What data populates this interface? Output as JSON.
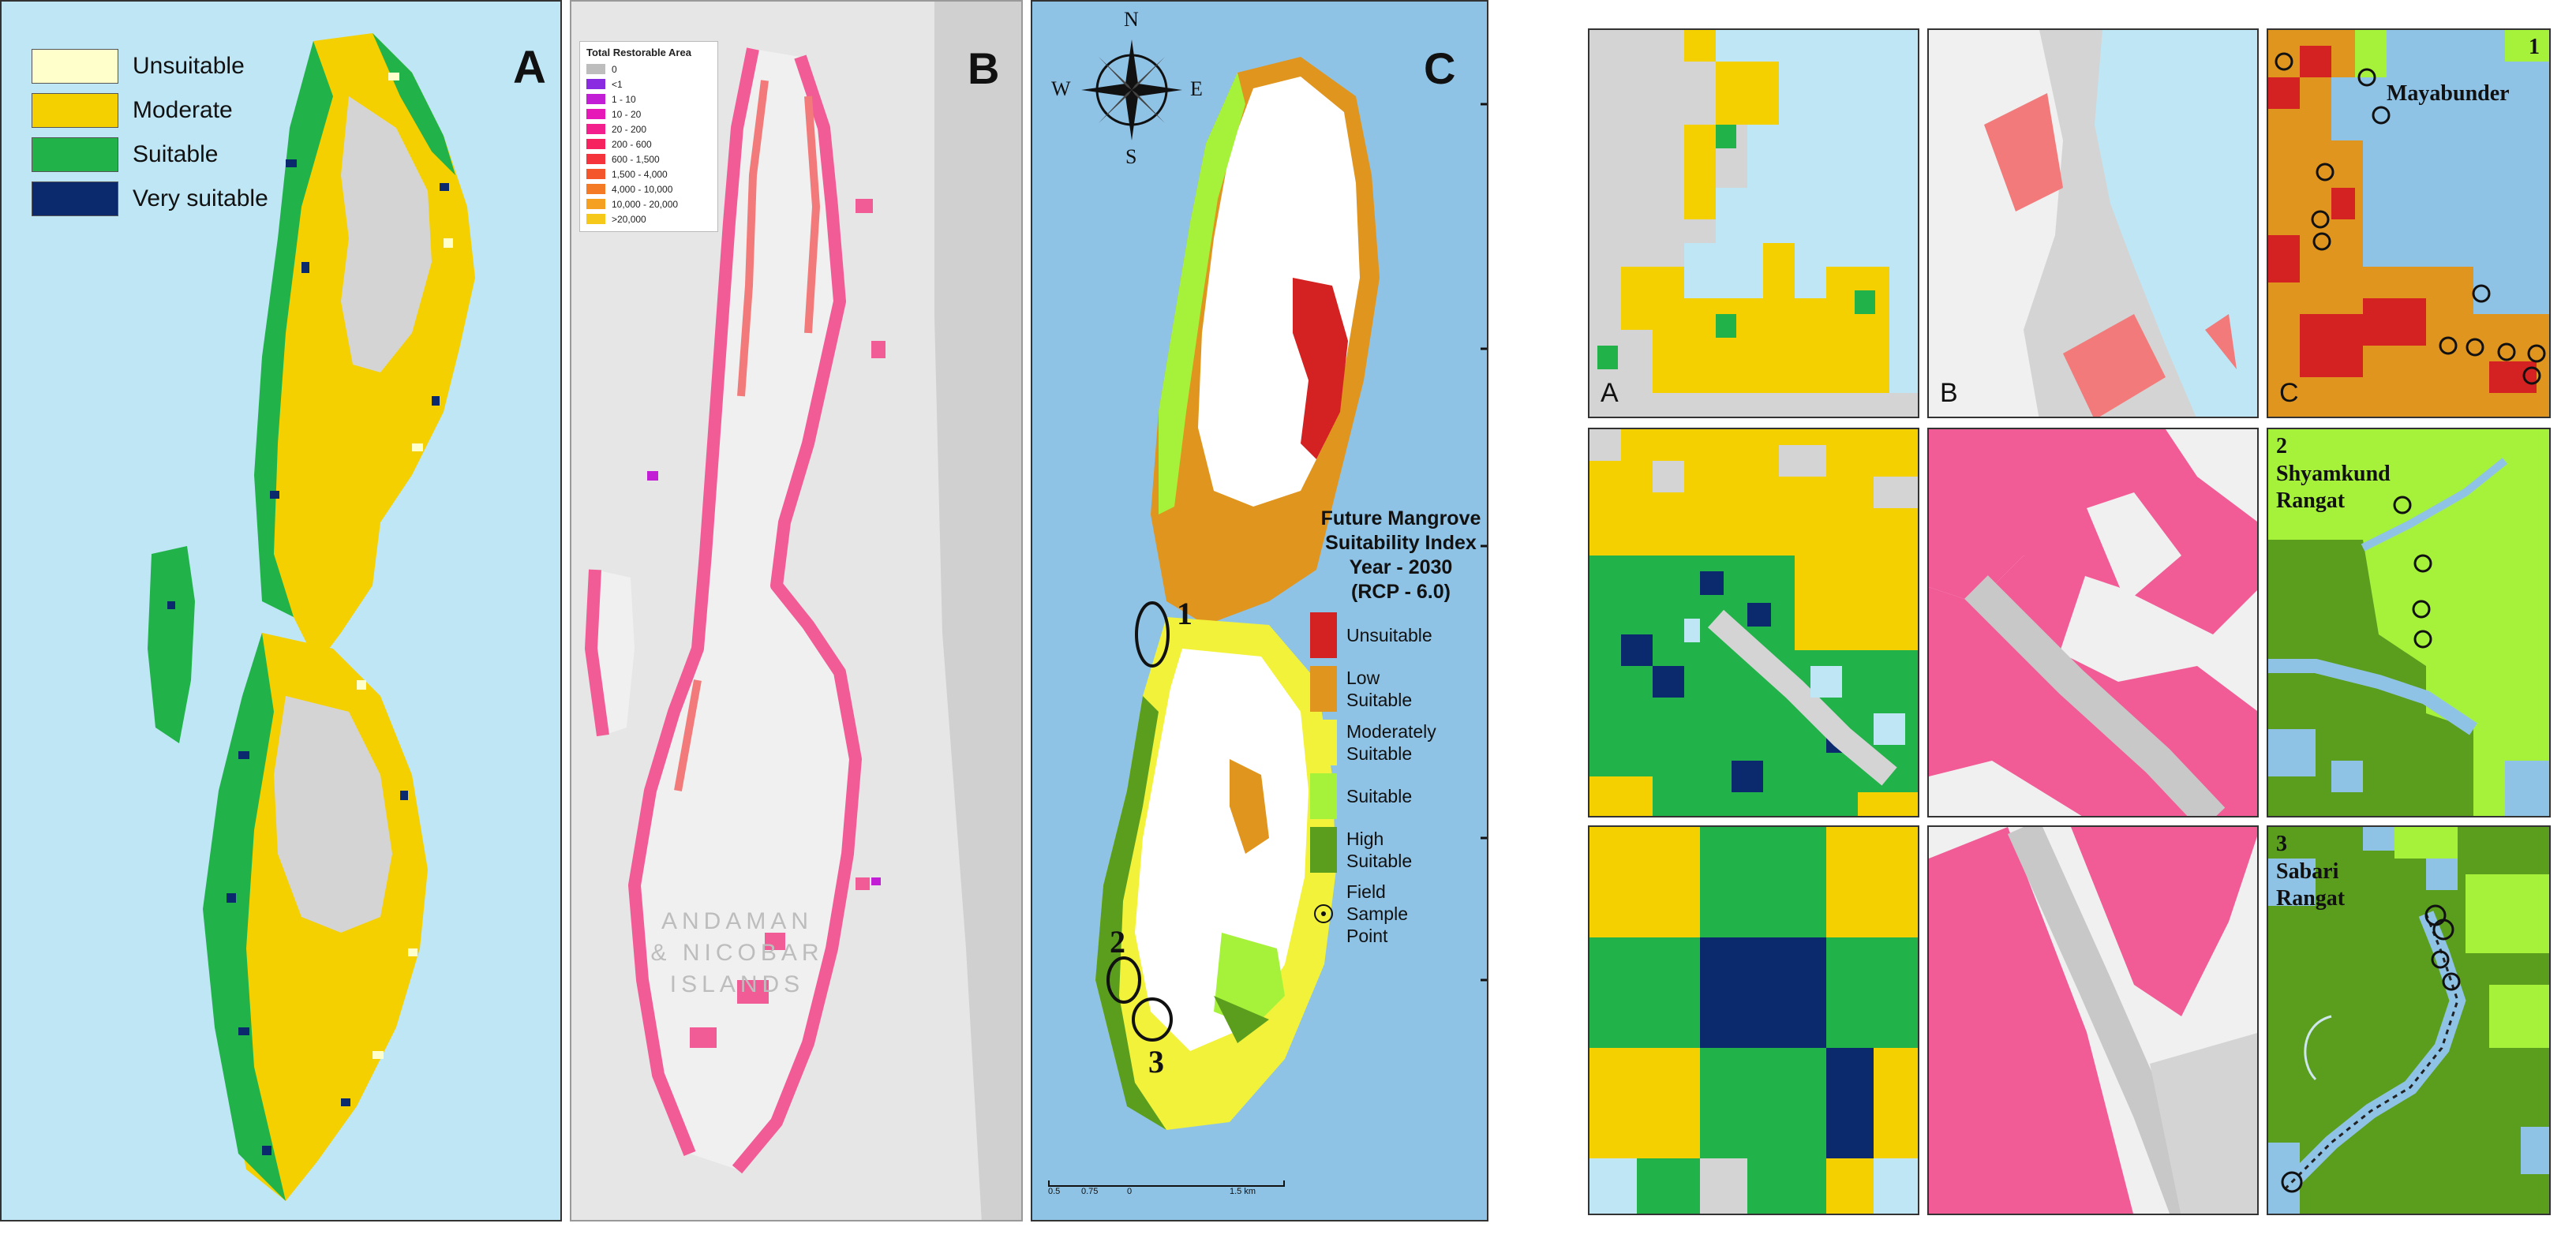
{
  "panels": {
    "A": {
      "letter": "A",
      "legend": [
        {
          "label": "Unsuitable",
          "color": "#ffffcc"
        },
        {
          "label": "Moderate",
          "color": "#f5d000"
        },
        {
          "label": "Suitable",
          "color": "#21b24a"
        },
        {
          "label": "Very suitable",
          "color": "#0b2a6e"
        }
      ]
    },
    "B": {
      "letter": "B",
      "legend_title": "Total Restorable Area",
      "legend": [
        {
          "label": "0",
          "color": "#bdbdbd"
        },
        {
          "label": "<1",
          "color": "#8a2be2"
        },
        {
          "label": "1 - 10",
          "color": "#c21ed6"
        },
        {
          "label": "10 - 20",
          "color": "#e619b8"
        },
        {
          "label": "20 - 200",
          "color": "#f21f8c"
        },
        {
          "label": "200 - 600",
          "color": "#f5225f"
        },
        {
          "label": "600 - 1,500",
          "color": "#f5333d"
        },
        {
          "label": "1,500 - 4,000",
          "color": "#f5552b"
        },
        {
          "label": "4,000 - 10,000",
          "color": "#f57a26"
        },
        {
          "label": "10,000 - 20,000",
          "color": "#f5a020"
        },
        {
          "label": ">20,000",
          "color": "#f5c81a"
        }
      ],
      "watermark": [
        "ANDAMAN",
        "& NICOBAR",
        "ISLANDS"
      ]
    },
    "C": {
      "letter": "C",
      "compass": {
        "n": "N",
        "s": "S",
        "e": "E",
        "w": "W"
      },
      "sites": [
        "1",
        "2",
        "3"
      ],
      "legend_title": [
        "Future Mangrove",
        "Suitability Index",
        "Year - 2030",
        "(RCP - 6.0)"
      ],
      "legend": [
        {
          "label": "Unsuitable",
          "color": "#d42222"
        },
        {
          "label": "Low Suitable",
          "color": "#e0951f"
        },
        {
          "label": "Moderately Suitable",
          "color": "#f2f23a"
        },
        {
          "label": "Suitable",
          "color": "#a6f23a"
        },
        {
          "label": "High Suitable",
          "color": "#5b9e1e"
        }
      ],
      "field_point_label": "Field Sample Point",
      "scale_labels": [
        "0.5",
        "0.75",
        "0",
        "1.5 km"
      ]
    }
  },
  "insets": {
    "row1": {
      "letter_A": "A",
      "letter_B": "B",
      "letter_C": "C",
      "site_no": "1",
      "place": [
        "Mayabunder"
      ]
    },
    "row2": {
      "site_no": "2",
      "place": [
        "Shyamkund",
        "Rangat"
      ]
    },
    "row3": {
      "site_no": "3",
      "place": [
        "Sabari",
        "Rangat"
      ]
    }
  },
  "colors": {
    "sea": "#bfe6f5",
    "land_gray": "#d4d4d4",
    "pink": "#f25c96",
    "salmon": "#f27a7a",
    "sea_c": "#8fc3e6"
  }
}
